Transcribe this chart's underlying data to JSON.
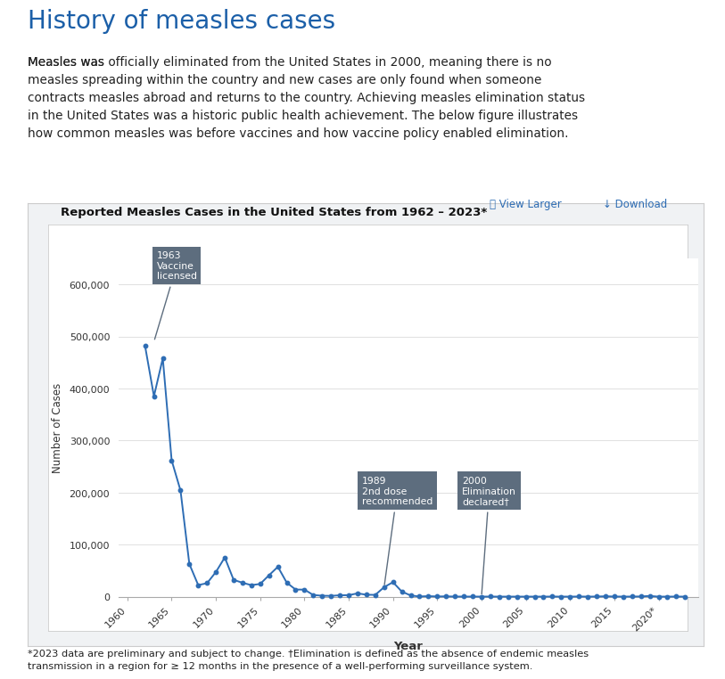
{
  "title": "Reported Measles Cases in the United States from 1962 – 2023*",
  "xlabel": "Year",
  "ylabel": "Number of Cases",
  "page_title": "History of measles cases",
  "page_title_color": "#1b5fa8",
  "link_text": "officially eliminated from the United States in 2000",
  "link_color": "#2e6db4",
  "body_text_before": "Measles was ",
  "body_text_after": ", meaning there is no\nmeasles spreading within the country and new cases are only found when someone\ncontracts measles abroad and returns to the country. Achieving measles elimination status\nin the United States was a historic public health achievement. The below figure illustrates\nhow common measles was before vaccines and how vaccine policy enabled elimination.",
  "view_larger_text": "🔍 View Larger",
  "download_text": "↓ Download",
  "footnote": "*2023 data are preliminary and subject to change. †Elimination is defined as the absence of endemic measles\ntransmission in a region for ≥ 12 months in the presence of a well-performing surveillance system.",
  "years": [
    1962,
    1963,
    1964,
    1965,
    1966,
    1967,
    1968,
    1969,
    1970,
    1971,
    1972,
    1973,
    1974,
    1975,
    1976,
    1977,
    1978,
    1979,
    1980,
    1981,
    1982,
    1983,
    1984,
    1985,
    1986,
    1987,
    1988,
    1989,
    1990,
    1991,
    1992,
    1993,
    1994,
    1995,
    1996,
    1997,
    1998,
    1999,
    2000,
    2001,
    2002,
    2003,
    2004,
    2005,
    2006,
    2007,
    2008,
    2009,
    2010,
    2011,
    2012,
    2013,
    2014,
    2015,
    2016,
    2017,
    2018,
    2019,
    2020,
    2021,
    2022,
    2023
  ],
  "cases": [
    481530,
    385156,
    458083,
    261904,
    204136,
    62705,
    22231,
    25826,
    47351,
    75290,
    32275,
    26690,
    22094,
    24374,
    41126,
    57345,
    26871,
    13597,
    13506,
    3124,
    1714,
    1497,
    2587,
    2822,
    6282,
    3655,
    3396,
    18193,
    27786,
    9643,
    2237,
    312,
    963,
    309,
    508,
    138,
    100,
    100,
    86,
    116,
    44,
    56,
    37,
    66,
    55,
    43,
    140,
    71,
    63,
    220,
    55,
    187,
    667,
    189,
    86,
    120,
    372,
    1282,
    13,
    49,
    121,
    58
  ],
  "line_color": "#2e6db4",
  "marker_color": "#2e6db4",
  "annotation_box_color": "#5d6d7e",
  "annotation_year_bg": "#404040",
  "background_color": "#f0f2f5",
  "card_outer_bg": "#e8eaed",
  "card_inner_bg": "#ffffff",
  "grid_color": "#e0e0e0",
  "ylim": [
    0,
    650000
  ],
  "yticks": [
    0,
    100000,
    200000,
    300000,
    400000,
    500000,
    600000
  ],
  "ytick_labels": [
    "0",
    "100,000",
    "200,000",
    "300,000",
    "400,000",
    "500,000",
    "600,000"
  ]
}
